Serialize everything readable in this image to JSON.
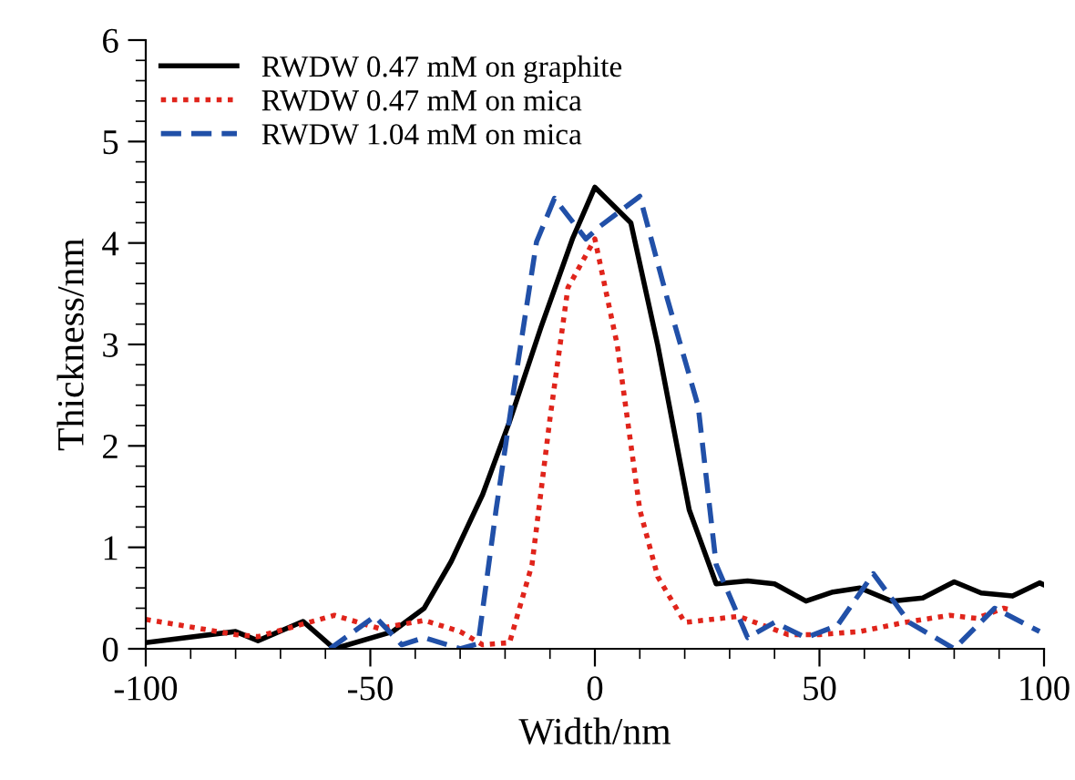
{
  "chart_data": {
    "type": "line",
    "xlabel": "Width/nm",
    "ylabel": "Thickness/nm",
    "xlim": [
      -100,
      100
    ],
    "ylim": [
      0,
      6
    ],
    "xticks": [
      -100,
      -50,
      0,
      50,
      100
    ],
    "yticks": [
      0,
      1,
      2,
      3,
      4,
      5,
      6
    ],
    "grid": false,
    "legend": "top left",
    "series": [
      {
        "name": "RWDW 0.47 mM on graphite",
        "color": "#000000",
        "line_style": "solid",
        "x": [
          -100,
          -80,
          -75,
          -65,
          -58,
          -45,
          -38,
          -32,
          -25,
          -19,
          -12,
          -5,
          0,
          8,
          14,
          21,
          27,
          34,
          40,
          47,
          53,
          59,
          66,
          73,
          80,
          86,
          93,
          99,
          100
        ],
        "values": [
          0.06,
          0.17,
          0.08,
          0.27,
          0,
          0.17,
          0.4,
          0.86,
          1.52,
          2.24,
          3.17,
          4.04,
          4.55,
          4.2,
          2.99,
          1.37,
          0.64,
          0.67,
          0.64,
          0.47,
          0.56,
          0.6,
          0.47,
          0.5,
          0.66,
          0.55,
          0.52,
          0.65,
          0.63
        ]
      },
      {
        "name": "RWDW 0.47 mM on mica",
        "color": "#e0241b",
        "line_style": "dotted",
        "x": [
          -100,
          -80,
          -75,
          -58,
          -48,
          -38,
          -30,
          -25,
          -19,
          -14,
          -10,
          -6,
          0,
          5,
          10,
          14,
          20,
          32,
          43,
          50,
          59,
          69,
          79,
          85,
          91,
          93
        ],
        "values": [
          0.29,
          0.14,
          0.12,
          0.33,
          0.2,
          0.28,
          0.17,
          0.04,
          0.06,
          0.83,
          2.27,
          3.56,
          4.04,
          2.99,
          1.37,
          0.71,
          0.26,
          0.32,
          0.14,
          0.14,
          0.17,
          0.26,
          0.33,
          0.3,
          0.4,
          0.38
        ]
      },
      {
        "name": "RWDW 1.04 mM on mica",
        "color": "#2150a8",
        "line_style": "dashed",
        "x": [
          -59,
          -49,
          -43,
          -38,
          -30,
          -26,
          -22,
          -18,
          -13,
          -9,
          -2,
          1,
          10,
          16,
          23,
          27,
          34,
          40,
          47,
          54,
          62,
          70,
          80,
          89,
          99
        ],
        "values": [
          0,
          0.32,
          0.04,
          0.11,
          0,
          0.05,
          1.37,
          2.57,
          4.01,
          4.44,
          4.04,
          4.16,
          4.46,
          3.47,
          2.39,
          0.83,
          0.11,
          0.26,
          0.11,
          0.23,
          0.74,
          0.26,
          0,
          0.4,
          0.17
        ]
      }
    ]
  }
}
